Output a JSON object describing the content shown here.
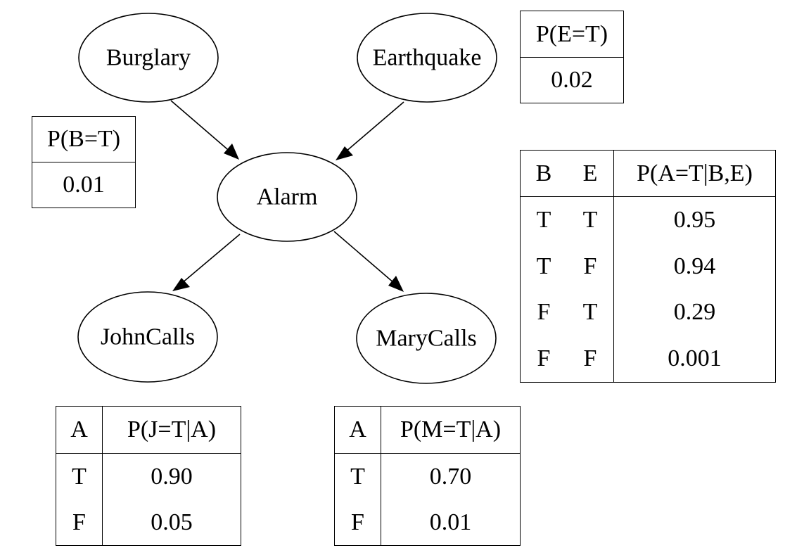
{
  "nodes": {
    "burglary": "Burglary",
    "earthquake": "Earthquake",
    "alarm": "Alarm",
    "johncalls": "JohnCalls",
    "marycalls": "MaryCalls"
  },
  "cpt_b": {
    "header": "P(B=T)",
    "value": "0.01"
  },
  "cpt_e": {
    "header": "P(E=T)",
    "value": "0.02"
  },
  "cpt_a": {
    "headers": [
      "B",
      "E",
      "P(A=T|B,E)"
    ],
    "rows": [
      [
        "T",
        "T",
        "0.95"
      ],
      [
        "T",
        "F",
        "0.94"
      ],
      [
        "F",
        "T",
        "0.29"
      ],
      [
        "F",
        "F",
        "0.001"
      ]
    ]
  },
  "cpt_j": {
    "headers": [
      "A",
      "P(J=T|A)"
    ],
    "rows": [
      [
        "T",
        "0.90"
      ],
      [
        "F",
        "0.05"
      ]
    ]
  },
  "cpt_m": {
    "headers": [
      "A",
      "P(M=T|A)"
    ],
    "rows": [
      [
        "T",
        "0.70"
      ],
      [
        "F",
        "0.01"
      ]
    ]
  }
}
